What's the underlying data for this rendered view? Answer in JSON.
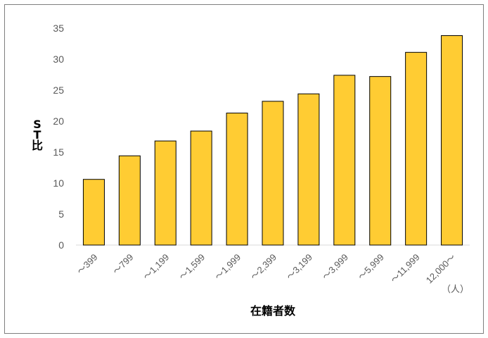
{
  "chart_data": {
    "type": "bar",
    "title": "",
    "xlabel": "在籍者数",
    "ylabel": "ST比",
    "x_unit": "（人）",
    "ylim": [
      0,
      35
    ],
    "yticks": [
      0,
      5,
      10,
      15,
      20,
      25,
      30,
      35
    ],
    "grid": false,
    "legend": "none",
    "bar_color": "#FFCC33",
    "bar_edge_color": "#000000",
    "categories": [
      "～399",
      "～799",
      "～1,199",
      "～1,599",
      "～1,999",
      "～2,399",
      "～3,199",
      "～3,999",
      "～5,999",
      "～11,999",
      "12,000～"
    ],
    "values": [
      10.6,
      14.4,
      16.8,
      18.4,
      21.3,
      23.2,
      24.4,
      27.4,
      27.2,
      31.1,
      33.8
    ]
  }
}
